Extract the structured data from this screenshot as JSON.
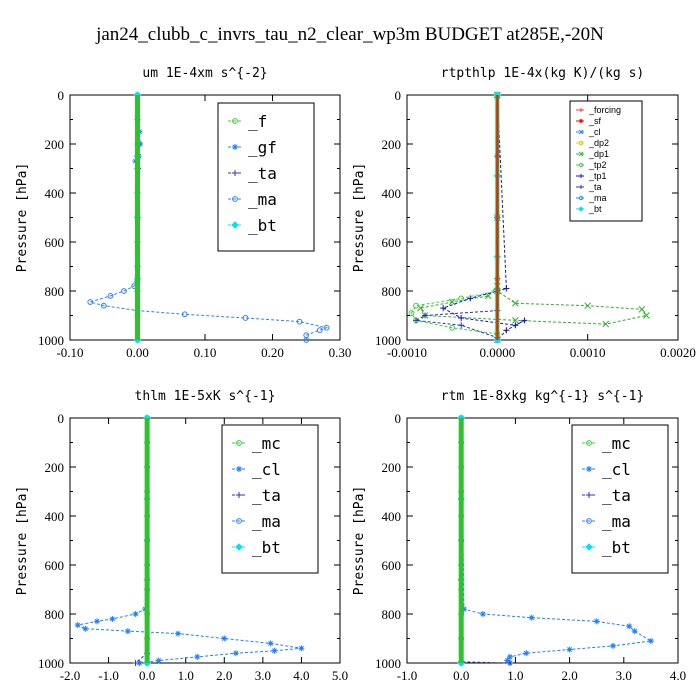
{
  "figure_title": "jan24_clubb_c_invrs_tau_n2_clear_wp3m  BUDGET at285E,-20N",
  "ylabel": "Pressure [hPa]",
  "y_ticks": [
    "0",
    "200",
    "400",
    "600",
    "800",
    "1000"
  ],
  "colors": {
    "forcing": "#ff3030",
    "sf": "#ff0000",
    "cl": "#2080ff",
    "dp2": "#e0d000",
    "dp1": "#30b030",
    "tp2": "#40d040",
    "tp1": "#1010d0",
    "ta": "#3030c0",
    "ma": "#3080ff",
    "bt": "#00e0ff",
    "f": "#30d030",
    "gf": "#2080ff",
    "mc": "#30d030"
  },
  "chart_data": [
    {
      "type": "line",
      "title": "um  1E-4xm s^{-2}",
      "xlabel": "",
      "ylabel": "Pressure [hPa]",
      "xlim": [
        -0.1,
        0.3
      ],
      "ylim": [
        1000,
        0
      ],
      "x_ticks": [
        "-0.10",
        "0.00",
        "0.10",
        "0.20",
        "0.30"
      ],
      "x_tick_values": [
        -0.1,
        0.0,
        0.1,
        0.2,
        0.3
      ],
      "legend_position": "top-right",
      "legend_style": "big",
      "series": [
        {
          "name": "_f",
          "color_key": "f",
          "marker": "o",
          "x": [
            0,
            0,
            0,
            0,
            0,
            0,
            0,
            0,
            0,
            0,
            0
          ],
          "y": [
            0,
            100,
            200,
            300,
            400,
            500,
            600,
            700,
            800,
            900,
            1000
          ]
        },
        {
          "name": "_gf",
          "color_key": "gf",
          "marker": "*",
          "x": [
            0,
            0.003,
            0.004,
            0.002,
            -0.003,
            0.001,
            0,
            0,
            0
          ],
          "y": [
            100,
            150,
            200,
            250,
            270,
            300,
            400,
            600,
            800
          ]
        },
        {
          "name": "_ta",
          "color_key": "ta",
          "marker": "+",
          "x": [
            0,
            0,
            0,
            0
          ],
          "y": [
            0,
            300,
            700,
            1000
          ]
        },
        {
          "name": "_ma",
          "color_key": "ma",
          "marker": "o",
          "x": [
            0,
            0,
            -0.005,
            -0.02,
            -0.04,
            -0.07,
            -0.05,
            0.0,
            0.07,
            0.16,
            0.24,
            0.28,
            0.27,
            0.25,
            0.25
          ],
          "y": [
            0,
            700,
            780,
            800,
            820,
            845,
            860,
            880,
            895,
            910,
            925,
            950,
            960,
            980,
            1000
          ]
        },
        {
          "name": "_bt",
          "color_key": "bt",
          "marker": "d",
          "x": [
            0,
            0,
            0,
            0,
            0
          ],
          "y": [
            0,
            250,
            500,
            750,
            1000
          ]
        }
      ]
    },
    {
      "type": "line",
      "title": "rtpthlp  1E-4x(kg K)/(kg s)",
      "xlabel": "",
      "ylabel": "Pressure [hPa]",
      "xlim": [
        -0.001,
        0.002
      ],
      "ylim": [
        1000,
        0
      ],
      "x_ticks": [
        "-0.0010",
        "0.0000",
        "0.0010",
        "0.0020"
      ],
      "x_tick_values": [
        -0.001,
        0.0,
        0.001,
        0.002
      ],
      "legend_position": "top-right",
      "legend_style": "small",
      "series": [
        {
          "name": "_forcing",
          "color_key": "forcing",
          "marker": "+",
          "x": [
            0,
            0,
            0,
            0,
            0
          ],
          "y": [
            0,
            250,
            500,
            750,
            1000
          ]
        },
        {
          "name": "_sf",
          "color_key": "sf",
          "marker": "*",
          "x": [
            0,
            0,
            0,
            0,
            0
          ],
          "y": [
            0,
            250,
            500,
            750,
            1000
          ]
        },
        {
          "name": "_cl",
          "color_key": "cl",
          "marker": "x",
          "x": [
            0,
            0,
            0
          ],
          "y": [
            0,
            500,
            1000
          ]
        },
        {
          "name": "_dp2",
          "color_key": "dp2",
          "marker": "s",
          "x": [
            0,
            0,
            0
          ],
          "y": [
            0,
            500,
            1000
          ]
        },
        {
          "name": "_dp1",
          "color_key": "dp1",
          "marker": "x",
          "x": [
            0,
            0,
            -0.0001,
            -0.0005,
            -0.00085,
            -0.0008,
            0.0002,
            0.0012,
            0.00165,
            0.0016,
            0.001,
            0.0002,
            0
          ],
          "y": [
            0,
            780,
            820,
            845,
            870,
            900,
            920,
            935,
            900,
            875,
            860,
            850,
            800
          ]
        },
        {
          "name": "_tp2",
          "color_key": "tp2",
          "marker": "o",
          "x": [
            0,
            0,
            -0.0004,
            -0.0009,
            -0.00095,
            -0.0009,
            -0.0005,
            0,
            0
          ],
          "y": [
            0,
            800,
            830,
            860,
            890,
            920,
            950,
            975,
            1000
          ]
        },
        {
          "name": "_tp1",
          "color_key": "tp1",
          "marker": "+",
          "x": [
            0,
            0.0001,
            -0.0003,
            -0.0006,
            -0.0004,
            0.0002,
            0.0003,
            0.0001,
            0
          ],
          "y": [
            0,
            790,
            830,
            870,
            910,
            940,
            920,
            960,
            1000
          ]
        },
        {
          "name": "_ta",
          "color_key": "ta",
          "marker": "+",
          "x": [
            0,
            0,
            -0.0008,
            -0.0009,
            -0.0004,
            0
          ],
          "y": [
            0,
            880,
            900,
            920,
            940,
            990
          ]
        },
        {
          "name": "_ma",
          "color_key": "ma",
          "marker": "o",
          "x": [
            0,
            0,
            0
          ],
          "y": [
            0,
            500,
            1000
          ]
        },
        {
          "name": "_bt",
          "color_key": "bt",
          "marker": "d",
          "x": [
            0,
            0,
            0,
            0
          ],
          "y": [
            0,
            330,
            660,
            1000
          ]
        }
      ]
    },
    {
      "type": "line",
      "title": "thlm  1E-5xK s^{-1}",
      "xlabel": "",
      "ylabel": "Pressure [hPa]",
      "xlim": [
        -2.0,
        5.0
      ],
      "ylim": [
        1000,
        0
      ],
      "x_ticks": [
        "-2.0",
        "-1.0",
        "0.0",
        "1.0",
        "2.0",
        "3.0",
        "4.0",
        "5.0"
      ],
      "x_tick_values": [
        -2,
        -1,
        0,
        1,
        2,
        3,
        4,
        5
      ],
      "legend_position": "top-right",
      "legend_style": "big",
      "series": [
        {
          "name": "_mc",
          "color_key": "mc",
          "marker": "o",
          "x": [
            0,
            0,
            0,
            0,
            0,
            0,
            0,
            0,
            0,
            0,
            0
          ],
          "y": [
            0,
            100,
            200,
            300,
            400,
            500,
            600,
            700,
            800,
            900,
            1000
          ]
        },
        {
          "name": "_cl",
          "color_key": "cl",
          "marker": "*",
          "x": [
            0,
            -0.05,
            -0.3,
            -0.9,
            -1.3,
            -1.8,
            -1.6,
            -0.5,
            0.8,
            2.0,
            3.2,
            4.0,
            3.3,
            2.3,
            1.3,
            0.3,
            -0.2
          ],
          "y": [
            0,
            780,
            800,
            820,
            830,
            845,
            860,
            870,
            880,
            900,
            920,
            940,
            950,
            960,
            975,
            990,
            1000
          ]
        },
        {
          "name": "_ta",
          "color_key": "ta",
          "marker": "+",
          "x": [
            0,
            0,
            -0.3,
            0
          ],
          "y": [
            0,
            960,
            1000,
            1000
          ]
        },
        {
          "name": "_ma",
          "color_key": "ma",
          "marker": "o",
          "x": [
            0,
            0,
            0
          ],
          "y": [
            0,
            500,
            1000
          ]
        },
        {
          "name": "_bt",
          "color_key": "bt",
          "marker": "d",
          "x": [
            0,
            0,
            0,
            0
          ],
          "y": [
            0,
            330,
            660,
            1000
          ]
        }
      ]
    },
    {
      "type": "line",
      "title": "rtm  1E-8xkg kg^{-1} s^{-1}",
      "xlabel": "",
      "ylabel": "Pressure [hPa]",
      "xlim": [
        -1.0,
        4.0
      ],
      "ylim": [
        1000,
        0
      ],
      "x_ticks": [
        "-1.0",
        "0.0",
        "1.0",
        "2.0",
        "3.0",
        "4.0"
      ],
      "x_tick_values": [
        -1,
        0,
        1,
        2,
        3,
        4
      ],
      "legend_position": "top-right",
      "legend_style": "big",
      "series": [
        {
          "name": "_mc",
          "color_key": "mc",
          "marker": "o",
          "x": [
            0,
            0,
            0,
            0,
            0,
            0,
            0,
            0,
            0,
            0,
            0
          ],
          "y": [
            0,
            100,
            200,
            300,
            400,
            500,
            600,
            700,
            800,
            900,
            1000
          ]
        },
        {
          "name": "_cl",
          "color_key": "cl",
          "marker": "*",
          "x": [
            0,
            0.05,
            0.4,
            1.3,
            2.5,
            3.1,
            3.2,
            3.5,
            2.8,
            2.0,
            1.2,
            0.9,
            0.85,
            0.9
          ],
          "y": [
            0,
            780,
            800,
            815,
            830,
            850,
            870,
            910,
            930,
            945,
            960,
            975,
            990,
            1000
          ]
        },
        {
          "name": "_ta",
          "color_key": "ta",
          "marker": "+",
          "x": [
            0,
            0,
            0.9,
            0.9
          ],
          "y": [
            0,
            995,
            1000,
            1000
          ]
        },
        {
          "name": "_ma",
          "color_key": "ma",
          "marker": "o",
          "x": [
            0,
            0,
            0
          ],
          "y": [
            0,
            500,
            1000
          ]
        },
        {
          "name": "_bt",
          "color_key": "bt",
          "marker": "d",
          "x": [
            0,
            0,
            0,
            0
          ],
          "y": [
            0,
            330,
            660,
            1000
          ]
        }
      ]
    }
  ]
}
